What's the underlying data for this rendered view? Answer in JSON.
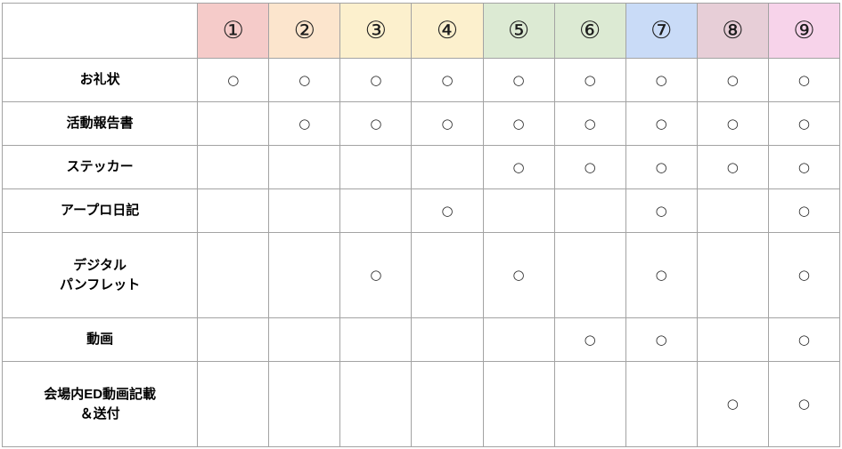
{
  "page": {
    "background": "#ffffff",
    "border_color": "#a3a3a3",
    "text_color": "#000000"
  },
  "chart_data": {
    "type": "table",
    "title": "",
    "corner_label": "",
    "mark": "○",
    "columns": [
      "①",
      "②",
      "③",
      "④",
      "⑤",
      "⑥",
      "⑦",
      "⑧",
      "⑨"
    ],
    "column_colors": [
      "#f5cbc9",
      "#fce5cd",
      "#fcf0cd",
      "#fcf0cd",
      "#dcead3",
      "#dcead3",
      "#c9dbf7",
      "#e7ced7",
      "#f7d3ea"
    ],
    "rows": [
      {
        "label": "お礼状",
        "marks": [
          1,
          1,
          1,
          1,
          1,
          1,
          1,
          1,
          1
        ]
      },
      {
        "label": "活動報告書",
        "marks": [
          0,
          1,
          1,
          1,
          1,
          1,
          1,
          1,
          1
        ]
      },
      {
        "label": "ステッカー",
        "marks": [
          0,
          0,
          0,
          0,
          1,
          1,
          1,
          1,
          1
        ]
      },
      {
        "label": "アープロ日記",
        "marks": [
          0,
          0,
          0,
          1,
          0,
          0,
          1,
          0,
          1
        ]
      },
      {
        "label": "デジタル\nパンフレット",
        "marks": [
          0,
          0,
          1,
          0,
          1,
          0,
          1,
          0,
          1
        ]
      },
      {
        "label": "動画",
        "marks": [
          0,
          0,
          0,
          0,
          0,
          1,
          1,
          0,
          1
        ]
      },
      {
        "label": "会場内ED動画記載\n＆送付",
        "marks": [
          0,
          0,
          0,
          0,
          0,
          0,
          0,
          1,
          1
        ]
      }
    ]
  }
}
